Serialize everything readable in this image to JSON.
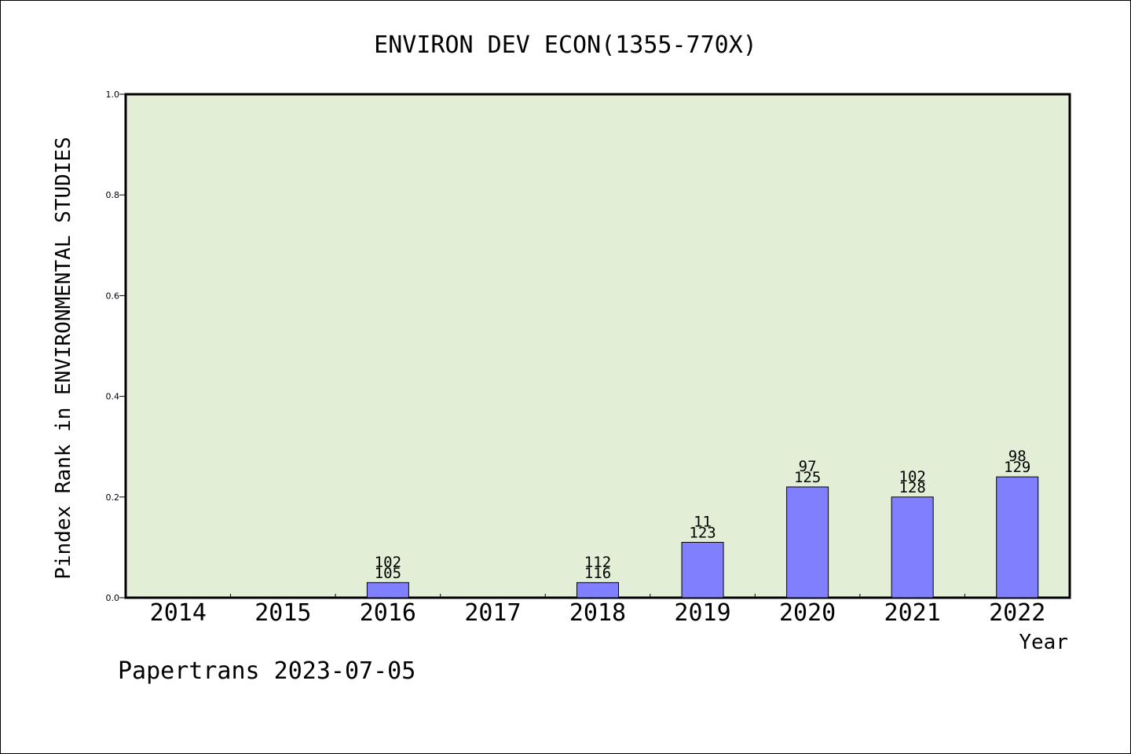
{
  "chart_data": {
    "type": "bar",
    "title": "ENVIRON DEV ECON(1355-770X)",
    "xlabel": "Year",
    "ylabel": "Pindex Rank in ENVIRONMENTAL STUDIES",
    "ylim": [
      0,
      1.0
    ],
    "yticks": [
      "0.0",
      "0.2",
      "0.4",
      "0.6",
      "0.8",
      "1.0"
    ],
    "grid": false,
    "categories": [
      "2014",
      "2015",
      "2016",
      "2017",
      "2018",
      "2019",
      "2020",
      "2021",
      "2022"
    ],
    "values": [
      null,
      null,
      0.03,
      null,
      0.03,
      0.11,
      0.22,
      0.2,
      0.24
    ],
    "annotations": [
      null,
      null,
      [
        "102",
        "105"
      ],
      null,
      [
        "112",
        "116"
      ],
      [
        "11",
        "123"
      ],
      [
        "97",
        "125"
      ],
      [
        "102",
        "128"
      ],
      [
        "98",
        "129"
      ]
    ]
  },
  "footer": "Papertrans 2023-07-05",
  "colors": {
    "plot_background": "#e2efd6",
    "bar_fill": "#8080ff",
    "bar_stroke": "#000000",
    "axis": "#000000"
  }
}
